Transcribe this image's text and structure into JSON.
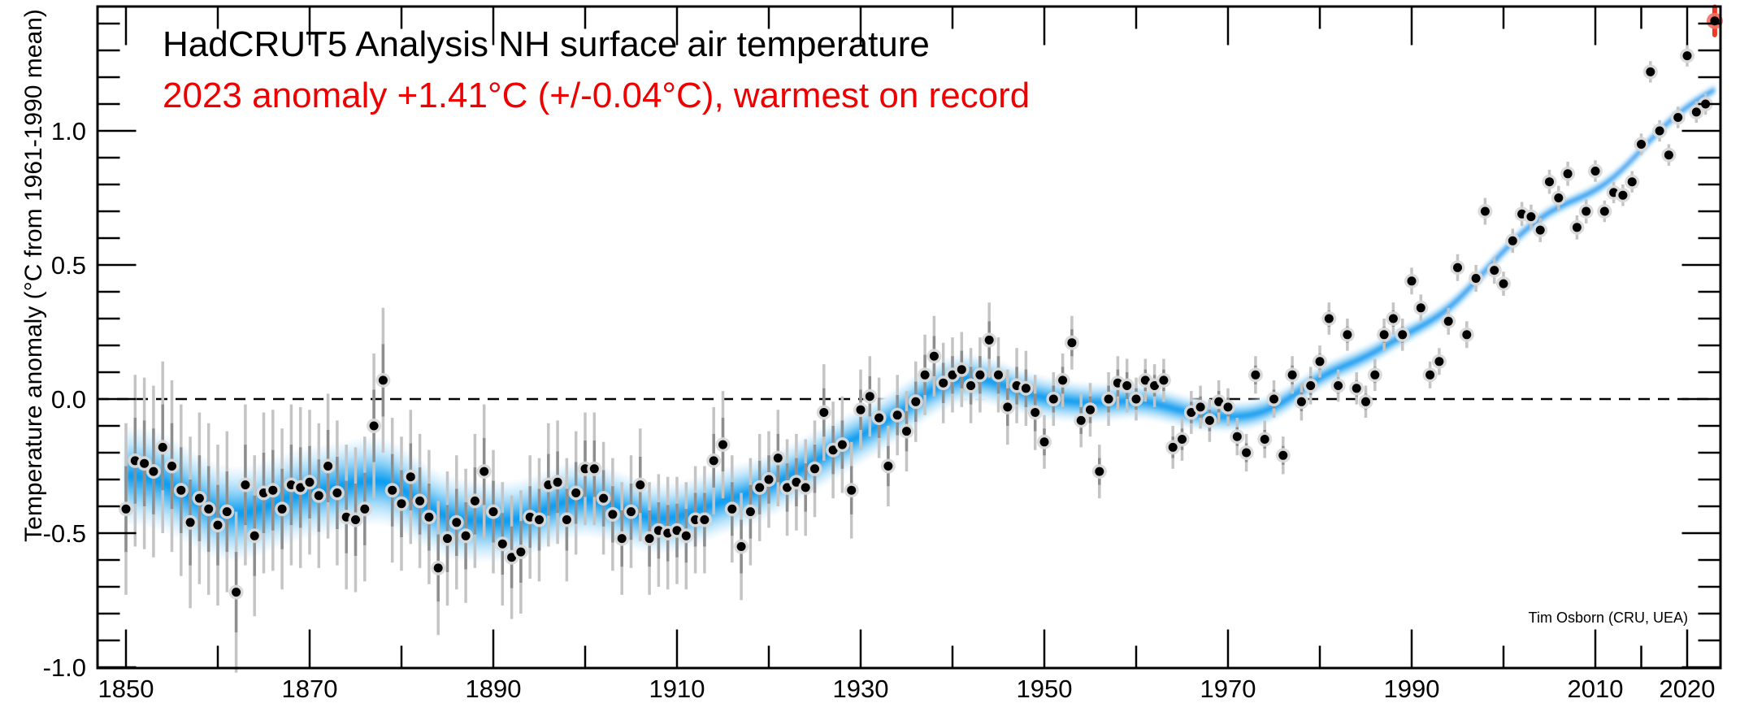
{
  "title": {
    "text": "HadCRUT5 Analysis NH surface air temperature",
    "color": "#000000"
  },
  "subtitle": {
    "text": "2023 anomaly +1.41°C (+/-0.04°C), warmest on record",
    "color": "#ee0000"
  },
  "credit": "Tim Osborn (CRU, UEA)",
  "axes": {
    "y_label": "Temperature anomaly (°C from 1961-1990 mean)",
    "y_ticks": [
      {
        "v": 1.0,
        "label": "1.0"
      },
      {
        "v": 0.5,
        "label": "0.5"
      },
      {
        "v": 0.0,
        "label": "0.0"
      },
      {
        "v": -0.5,
        "label": "-0.5"
      },
      {
        "v": -1.0,
        "label": "-1.0"
      }
    ],
    "y_minor_step": 0.1,
    "x_ticks": [
      {
        "year": 1850,
        "label": "1850"
      },
      {
        "year": 1870,
        "label": "1870"
      },
      {
        "year": 1890,
        "label": "1890"
      },
      {
        "year": 1910,
        "label": "1910"
      },
      {
        "year": 1930,
        "label": "1930"
      },
      {
        "year": 1950,
        "label": "1950"
      },
      {
        "year": 1970,
        "label": "1970"
      },
      {
        "year": 1990,
        "label": "1990"
      },
      {
        "year": 2010,
        "label": "2010"
      },
      {
        "year": 2020,
        "label": "2020"
      }
    ],
    "x_minor_years": [
      1860,
      1880,
      1900,
      1920,
      1940,
      1960,
      1980,
      2000,
      2015
    ]
  },
  "colors": {
    "curve_core": "#18a2f0",
    "curve_line": "#0d9ef2",
    "band_tint_steps": [
      0.07,
      0.15,
      0.25,
      0.37,
      0.51,
      0.67,
      0.84,
      1.0
    ],
    "error_bar_outer": "#c4c4c4",
    "error_bar_inner": "#8e8e8e",
    "dot": "#000000",
    "dot_halo": "#d8d8d8",
    "highlight_red": "#ee3a24",
    "highlight_halo": "#f5705f",
    "zero_line": "#000000",
    "frame": "#000000",
    "background": "#ffffff"
  },
  "chart_data": {
    "type": "scatter",
    "title": "HadCRUT5 Analysis NH surface air temperature",
    "subtitle": "2023 anomaly +1.41°C (+/-0.04°C), warmest on record",
    "xlabel": "",
    "ylabel": "Temperature anomaly (°C from 1961-1990 mean)",
    "xlim": [
      1847,
      2024.6
    ],
    "ylim": [
      -1.0,
      1.46
    ],
    "grid": false,
    "legend": "none",
    "years": {
      "start": 1850,
      "count": 174
    },
    "anomaly": [
      -0.41,
      -0.23,
      -0.24,
      -0.27,
      -0.18,
      -0.25,
      -0.34,
      -0.46,
      -0.37,
      -0.41,
      -0.47,
      -0.42,
      -0.72,
      -0.32,
      -0.51,
      -0.35,
      -0.34,
      -0.41,
      -0.32,
      -0.33,
      -0.31,
      -0.36,
      -0.25,
      -0.35,
      -0.44,
      -0.45,
      -0.41,
      -0.1,
      0.07,
      -0.34,
      -0.39,
      -0.29,
      -0.38,
      -0.44,
      -0.63,
      -0.52,
      -0.46,
      -0.51,
      -0.38,
      -0.27,
      -0.42,
      -0.54,
      -0.59,
      -0.57,
      -0.44,
      -0.45,
      -0.32,
      -0.31,
      -0.45,
      -0.35,
      -0.26,
      -0.26,
      -0.37,
      -0.43,
      -0.52,
      -0.42,
      -0.32,
      -0.52,
      -0.49,
      -0.5,
      -0.49,
      -0.51,
      -0.45,
      -0.45,
      -0.23,
      -0.17,
      -0.41,
      -0.55,
      -0.42,
      -0.33,
      -0.3,
      -0.22,
      -0.33,
      -0.31,
      -0.33,
      -0.26,
      -0.05,
      -0.19,
      -0.17,
      -0.34,
      -0.04,
      0.01,
      -0.07,
      -0.25,
      -0.06,
      -0.12,
      -0.01,
      0.09,
      0.16,
      0.06,
      0.09,
      0.11,
      0.05,
      0.09,
      0.22,
      0.09,
      -0.03,
      0.05,
      0.04,
      -0.05,
      -0.16,
      0.0,
      0.07,
      0.21,
      -0.08,
      -0.04,
      -0.27,
      0.0,
      0.06,
      0.05,
      0.0,
      0.07,
      0.05,
      0.07,
      -0.18,
      -0.15,
      -0.05,
      -0.03,
      -0.08,
      -0.01,
      -0.03,
      -0.14,
      -0.2,
      0.09,
      -0.15,
      0.0,
      -0.21,
      0.09,
      -0.01,
      0.05,
      0.14,
      0.3,
      0.05,
      0.24,
      0.04,
      -0.01,
      0.09,
      0.24,
      0.3,
      0.24,
      0.44,
      0.34,
      0.09,
      0.14,
      0.29,
      0.49,
      0.24,
      0.45,
      0.7,
      0.48,
      0.43,
      0.59,
      0.69,
      0.68,
      0.63,
      0.81,
      0.75,
      0.84,
      0.64,
      0.7,
      0.85,
      0.7,
      0.77,
      0.76,
      0.81,
      0.95,
      1.22,
      1.0,
      0.91,
      1.05,
      1.28,
      1.07,
      1.1,
      1.41
    ],
    "uncertainty": [
      0.32,
      0.32,
      0.32,
      0.32,
      0.32,
      0.32,
      0.32,
      0.32,
      0.32,
      0.32,
      0.3,
      0.3,
      0.3,
      0.3,
      0.3,
      0.3,
      0.3,
      0.3,
      0.3,
      0.3,
      0.27,
      0.27,
      0.27,
      0.27,
      0.27,
      0.27,
      0.27,
      0.27,
      0.27,
      0.27,
      0.25,
      0.25,
      0.25,
      0.25,
      0.25,
      0.25,
      0.25,
      0.25,
      0.25,
      0.25,
      0.23,
      0.23,
      0.23,
      0.23,
      0.23,
      0.23,
      0.23,
      0.23,
      0.23,
      0.23,
      0.21,
      0.21,
      0.21,
      0.21,
      0.21,
      0.21,
      0.21,
      0.21,
      0.21,
      0.21,
      0.2,
      0.2,
      0.2,
      0.2,
      0.2,
      0.2,
      0.2,
      0.2,
      0.2,
      0.2,
      0.18,
      0.18,
      0.18,
      0.18,
      0.18,
      0.18,
      0.18,
      0.18,
      0.18,
      0.18,
      0.15,
      0.15,
      0.15,
      0.15,
      0.15,
      0.15,
      0.15,
      0.15,
      0.15,
      0.15,
      0.14,
      0.14,
      0.14,
      0.14,
      0.14,
      0.14,
      0.14,
      0.14,
      0.14,
      0.14,
      0.1,
      0.1,
      0.1,
      0.1,
      0.1,
      0.1,
      0.1,
      0.1,
      0.1,
      0.1,
      0.08,
      0.08,
      0.08,
      0.08,
      0.08,
      0.08,
      0.08,
      0.08,
      0.08,
      0.08,
      0.07,
      0.07,
      0.07,
      0.07,
      0.07,
      0.07,
      0.07,
      0.07,
      0.07,
      0.07,
      0.06,
      0.06,
      0.06,
      0.06,
      0.06,
      0.06,
      0.06,
      0.06,
      0.06,
      0.06,
      0.05,
      0.05,
      0.05,
      0.05,
      0.05,
      0.05,
      0.05,
      0.05,
      0.05,
      0.05,
      0.045,
      0.045,
      0.045,
      0.045,
      0.045,
      0.045,
      0.045,
      0.045,
      0.045,
      0.045,
      0.04,
      0.04,
      0.04,
      0.04,
      0.04,
      0.04,
      0.04,
      0.04,
      0.04,
      0.04,
      0.04,
      0.04,
      0.04,
      0.04
    ],
    "smoothed_band_halfwidth": [
      [
        1850,
        0.18
      ],
      [
        1880,
        0.155
      ],
      [
        1900,
        0.135
      ],
      [
        1920,
        0.115
      ],
      [
        1940,
        0.09
      ],
      [
        1960,
        0.065
      ],
      [
        1980,
        0.045
      ],
      [
        2000,
        0.028
      ],
      [
        2023,
        0.022
      ]
    ],
    "highlight": {
      "year": 2023,
      "value": 1.41,
      "uncertainty": 0.04
    }
  }
}
